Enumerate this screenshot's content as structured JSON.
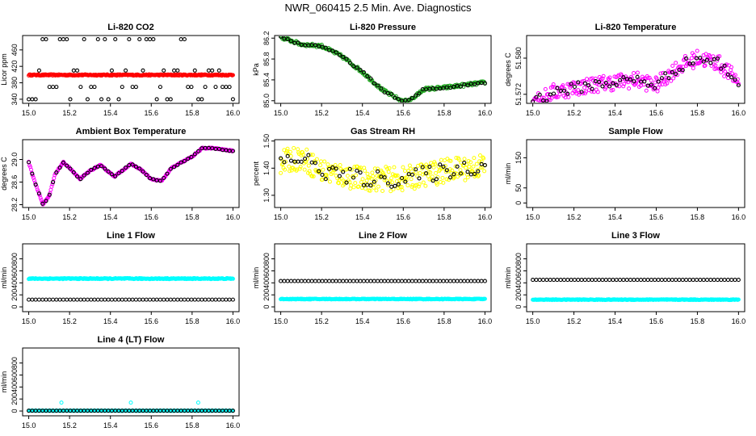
{
  "title": "NWR_060415  2.5 Min. Ave. Diagnostics",
  "colors": {
    "black": "#000000",
    "red": "#ff0000",
    "green": "#22aa22",
    "magenta": "#ff00ff",
    "yellow": "#ffff00",
    "cyan": "#00ffff"
  },
  "chart_data": [
    {
      "id": "co2",
      "type": "scatter",
      "title": "Li-820 CO2",
      "ylabel": "Licor ppm",
      "xlim": [
        14.97,
        16.03
      ],
      "ylim": [
        330,
        495
      ],
      "x_ticks": [
        "15.0",
        "15.2",
        "15.4",
        "15.6",
        "15.8",
        "16.0"
      ],
      "y_ticks": [
        "340",
        "380",
        "420",
        "460"
      ],
      "series": [
        {
          "name": "main",
          "color": "red",
          "pattern": "flat",
          "level": 399,
          "noise": 1.5,
          "n": 300
        },
        {
          "name": "pts",
          "color": "black",
          "pattern": "levels",
          "levels": [
            340,
            370,
            410,
            486
          ],
          "n": 60
        }
      ]
    },
    {
      "id": "pressure",
      "type": "scatter",
      "title": "Li-820 Pressure",
      "ylabel": "kPa",
      "xlim": [
        14.97,
        16.03
      ],
      "ylim": [
        84.95,
        86.25
      ],
      "x_ticks": [
        "15.0",
        "15.2",
        "15.4",
        "15.6",
        "15.8",
        "16.0"
      ],
      "y_ticks": [
        "85.0",
        "85.4",
        "85.8",
        "86.2"
      ],
      "series": [
        {
          "name": "main",
          "color": "green",
          "pattern": "path",
          "path": [
            [
              15.0,
              86.22
            ],
            [
              15.1,
              86.08
            ],
            [
              15.2,
              86.05
            ],
            [
              15.3,
              85.85
            ],
            [
              15.4,
              85.55
            ],
            [
              15.5,
              85.2
            ],
            [
              15.6,
              84.98
            ],
            [
              15.65,
              85.05
            ],
            [
              15.7,
              85.22
            ],
            [
              15.8,
              85.25
            ],
            [
              15.9,
              85.3
            ],
            [
              16.0,
              85.35
            ]
          ],
          "noise": 0.03,
          "n": 240
        },
        {
          "name": "pts",
          "color": "black",
          "pattern": "path",
          "path": [
            [
              15.0,
              86.22
            ],
            [
              15.1,
              86.08
            ],
            [
              15.2,
              86.05
            ],
            [
              15.3,
              85.85
            ],
            [
              15.4,
              85.55
            ],
            [
              15.5,
              85.2
            ],
            [
              15.6,
              84.98
            ],
            [
              15.65,
              85.05
            ],
            [
              15.7,
              85.22
            ],
            [
              15.8,
              85.25
            ],
            [
              15.9,
              85.3
            ],
            [
              16.0,
              85.35
            ]
          ],
          "noise": 0.02,
          "n": 60
        }
      ]
    },
    {
      "id": "licor_temp",
      "type": "scatter",
      "title": "Li-820 Temperature",
      "ylabel": "degrees C",
      "xlim": [
        14.97,
        16.03
      ],
      "ylim": [
        51.57,
        51.585
      ],
      "x_ticks": [
        "15.0",
        "15.2",
        "15.4",
        "15.6",
        "15.8",
        "16.0"
      ],
      "y_ticks": [
        "51.572",
        "51.580"
      ],
      "series": [
        {
          "name": "main",
          "color": "magenta",
          "pattern": "path",
          "path": [
            [
              15.0,
              51.5712
            ],
            [
              15.05,
              51.5712
            ],
            [
              15.1,
              51.5725
            ],
            [
              15.3,
              51.5742
            ],
            [
              15.5,
              51.5752
            ],
            [
              15.6,
              51.574
            ],
            [
              15.7,
              51.5778
            ],
            [
              15.8,
              51.58
            ],
            [
              15.9,
              51.579
            ],
            [
              16.0,
              51.5748
            ]
          ],
          "noise": 0.0018,
          "n": 260
        },
        {
          "name": "pts",
          "color": "black",
          "pattern": "path",
          "path": [
            [
              15.0,
              51.5712
            ],
            [
              15.05,
              51.5712
            ],
            [
              15.1,
              51.5725
            ],
            [
              15.3,
              51.5742
            ],
            [
              15.5,
              51.5752
            ],
            [
              15.6,
              51.574
            ],
            [
              15.7,
              51.5778
            ],
            [
              15.8,
              51.58
            ],
            [
              15.9,
              51.579
            ],
            [
              16.0,
              51.5748
            ]
          ],
          "noise": 0.0012,
          "n": 60
        }
      ]
    },
    {
      "id": "box_temp",
      "type": "scatter",
      "title": "Ambient Box Temperature",
      "ylabel": "degrees C",
      "xlim": [
        14.97,
        16.03
      ],
      "ylim": [
        28.15,
        29.35
      ],
      "x_ticks": [
        "15.0",
        "15.2",
        "15.4",
        "15.6",
        "15.8",
        "16.0"
      ],
      "y_ticks": [
        "28.2",
        "28.6",
        "29.0"
      ],
      "series": [
        {
          "name": "main",
          "color": "magenta",
          "pattern": "path",
          "path": [
            [
              15.0,
              28.95
            ],
            [
              15.03,
              28.6
            ],
            [
              15.07,
              28.2
            ],
            [
              15.1,
              28.35
            ],
            [
              15.13,
              28.75
            ],
            [
              15.17,
              28.95
            ],
            [
              15.2,
              28.85
            ],
            [
              15.25,
              28.65
            ],
            [
              15.3,
              28.8
            ],
            [
              15.35,
              28.9
            ],
            [
              15.42,
              28.7
            ],
            [
              15.5,
              28.92
            ],
            [
              15.55,
              28.82
            ],
            [
              15.6,
              28.65
            ],
            [
              15.65,
              28.62
            ],
            [
              15.7,
              28.85
            ],
            [
              15.8,
              29.05
            ],
            [
              15.85,
              29.2
            ],
            [
              15.9,
              29.2
            ],
            [
              16.0,
              29.15
            ]
          ],
          "noise": 0.01,
          "n": 260
        },
        {
          "name": "pts",
          "color": "black",
          "pattern": "path",
          "path": [
            [
              15.0,
              28.95
            ],
            [
              15.03,
              28.6
            ],
            [
              15.07,
              28.2
            ],
            [
              15.1,
              28.35
            ],
            [
              15.13,
              28.75
            ],
            [
              15.17,
              28.95
            ],
            [
              15.2,
              28.85
            ],
            [
              15.25,
              28.65
            ],
            [
              15.3,
              28.8
            ],
            [
              15.35,
              28.9
            ],
            [
              15.42,
              28.7
            ],
            [
              15.5,
              28.92
            ],
            [
              15.55,
              28.82
            ],
            [
              15.6,
              28.65
            ],
            [
              15.65,
              28.62
            ],
            [
              15.7,
              28.85
            ],
            [
              15.8,
              29.05
            ],
            [
              15.85,
              29.2
            ],
            [
              15.9,
              29.2
            ],
            [
              16.0,
              29.15
            ]
          ],
          "noise": 0.008,
          "n": 60
        }
      ]
    },
    {
      "id": "rh",
      "type": "scatter",
      "title": "Gas Stream RH",
      "ylabel": "percent",
      "xlim": [
        14.97,
        16.03
      ],
      "ylim": [
        1.255,
        1.505
      ],
      "x_ticks": [
        "15.0",
        "15.2",
        "15.4",
        "15.6",
        "15.8",
        "16.0"
      ],
      "y_ticks": [
        "1.30",
        "1.40",
        "1.50"
      ],
      "series": [
        {
          "name": "main",
          "color": "yellow",
          "pattern": "path",
          "path": [
            [
              15.0,
              1.42
            ],
            [
              15.1,
              1.44
            ],
            [
              15.2,
              1.39
            ],
            [
              15.4,
              1.36
            ],
            [
              15.6,
              1.36
            ],
            [
              15.8,
              1.39
            ],
            [
              16.0,
              1.41
            ]
          ],
          "noise": 0.045,
          "n": 300
        },
        {
          "name": "pts",
          "color": "black",
          "pattern": "path",
          "path": [
            [
              15.0,
              1.42
            ],
            [
              15.1,
              1.44
            ],
            [
              15.2,
              1.39
            ],
            [
              15.4,
              1.36
            ],
            [
              15.6,
              1.36
            ],
            [
              15.8,
              1.39
            ],
            [
              16.0,
              1.41
            ]
          ],
          "noise": 0.03,
          "n": 60
        }
      ]
    },
    {
      "id": "sample_flow",
      "type": "scatter",
      "title": "Sample Flow",
      "ylabel": "ml/min",
      "xlim": [
        14.97,
        16.03
      ],
      "ylim": [
        -15,
        210
      ],
      "x_ticks": [
        "15.0",
        "15.2",
        "15.4",
        "15.6",
        "15.8",
        "16.0"
      ],
      "y_ticks": [
        "0",
        "50",
        "150"
      ],
      "series": []
    },
    {
      "id": "line1",
      "type": "scatter",
      "title": "Line 1 Flow",
      "ylabel": "ml/min",
      "xlim": [
        14.97,
        16.03
      ],
      "ylim": [
        -80,
        1050
      ],
      "x_ticks": [
        "15.0",
        "15.2",
        "15.4",
        "15.6",
        "15.8",
        "16.0"
      ],
      "y_ticks": [
        "0",
        "200",
        "400",
        "600",
        "800"
      ],
      "series": [
        {
          "name": "main",
          "color": "cyan",
          "pattern": "flat",
          "level": 470,
          "noise": 8,
          "n": 300
        },
        {
          "name": "pts",
          "color": "black",
          "pattern": "flat",
          "level": 120,
          "noise": 0,
          "n": 60
        }
      ]
    },
    {
      "id": "line2",
      "type": "scatter",
      "title": "Line 2 Flow",
      "ylabel": "ml/min",
      "xlim": [
        14.97,
        16.03
      ],
      "ylim": [
        -80,
        1050
      ],
      "x_ticks": [
        "15.0",
        "15.2",
        "15.4",
        "15.6",
        "15.8",
        "16.0"
      ],
      "y_ticks": [
        "0",
        "200",
        "400",
        "600",
        "800"
      ],
      "series": [
        {
          "name": "main",
          "color": "cyan",
          "pattern": "flat",
          "level": 130,
          "noise": 6,
          "n": 300
        },
        {
          "name": "pts",
          "color": "black",
          "pattern": "flat",
          "level": 430,
          "noise": 0,
          "n": 60
        }
      ]
    },
    {
      "id": "line3",
      "type": "scatter",
      "title": "Line 3 Flow",
      "ylabel": "ml/min",
      "xlim": [
        14.97,
        16.03
      ],
      "ylim": [
        -80,
        1050
      ],
      "x_ticks": [
        "15.0",
        "15.2",
        "15.4",
        "15.6",
        "15.8",
        "16.0"
      ],
      "y_ticks": [
        "0",
        "200",
        "400",
        "600",
        "800"
      ],
      "series": [
        {
          "name": "main",
          "color": "cyan",
          "pattern": "flat",
          "level": 120,
          "noise": 6,
          "n": 300
        },
        {
          "name": "pts",
          "color": "black",
          "pattern": "flat",
          "level": 450,
          "noise": 0,
          "n": 60
        }
      ]
    },
    {
      "id": "line4",
      "type": "scatter",
      "title": "Line 4 (LT) Flow",
      "ylabel": "ml/min",
      "xlim": [
        14.97,
        16.03
      ],
      "ylim": [
        -80,
        1050
      ],
      "x_ticks": [
        "15.0",
        "15.2",
        "15.4",
        "15.6",
        "15.8",
        "16.0"
      ],
      "y_ticks": [
        "0",
        "200",
        "400",
        "600",
        "800"
      ],
      "series": [
        {
          "name": "main",
          "color": "cyan",
          "pattern": "flat",
          "level": 5,
          "noise": 2,
          "n": 300
        },
        {
          "name": "pts",
          "color": "black",
          "pattern": "flat",
          "level": 5,
          "noise": 0,
          "n": 60
        },
        {
          "name": "spikes",
          "color": "cyan",
          "pattern": "points",
          "points": [
            [
              15.16,
              140
            ],
            [
              15.5,
              140
            ],
            [
              15.83,
              140
            ]
          ]
        }
      ]
    }
  ]
}
